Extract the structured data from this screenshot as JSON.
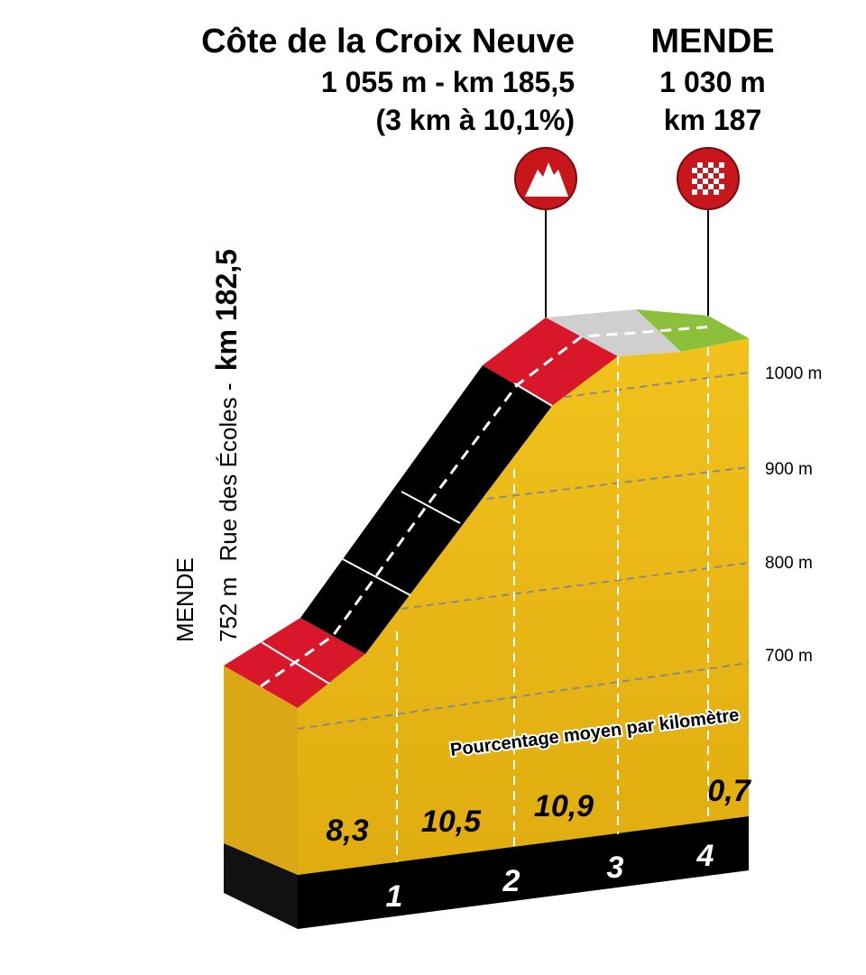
{
  "summit": {
    "name": "Côte de la Croix Neuve",
    "detail": "1 055 m - km 185,5",
    "gradient": "(3 km à 10,1%)"
  },
  "finish": {
    "name": "MENDE",
    "altitude": "1 030 m",
    "km": "km 187"
  },
  "start": {
    "name": "MENDE",
    "altitude": "752 m",
    "street": "Rue des Écoles -",
    "km": "km 182,5"
  },
  "axis_labels": [
    "1000 m",
    "900 m",
    "800 m",
    "700 m"
  ],
  "legend": "Pourcentage moyen par kilomètre",
  "segments": [
    "8,3",
    "10,5",
    "10,9",
    "0,7"
  ],
  "km_markers": [
    "1",
    "2",
    "3",
    "4"
  ]
}
